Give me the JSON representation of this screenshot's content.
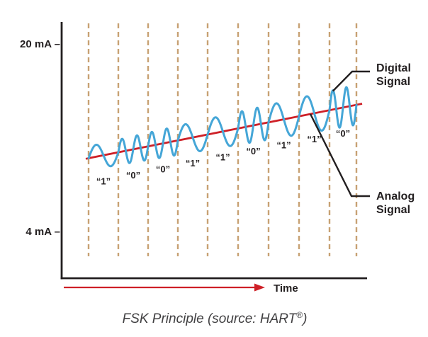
{
  "colors": {
    "ink": "#231f20",
    "analog_red": "#ce2027",
    "digital_blue": "#45a6d7",
    "grid_tan": "#c7a173",
    "caption_gray": "#414042"
  },
  "figure": {
    "caption": {
      "main": "FSK Principle (source: HART",
      "reg": "®",
      "close": ")"
    }
  },
  "annotations": {
    "digital_signal": {
      "lines": [
        "Digital",
        "Signal"
      ]
    },
    "analog_signal": {
      "lines": [
        "Analog",
        "Signal"
      ]
    }
  },
  "chart_data": {
    "type": "line",
    "title": "FSK Principle (source: HART®)",
    "xlabel": "Time",
    "ylabel": "",
    "ylim": [
      4,
      20
    ],
    "y_ticks": [
      {
        "label": "20 mA –",
        "value": 20
      },
      {
        "label": "4 mA –",
        "value": 4
      }
    ],
    "grid": "vertical tan dashed lines, one per bit period",
    "bit_periods": 9,
    "bits": [
      {
        "bit": "1",
        "label": "“1”"
      },
      {
        "bit": "0",
        "label": "“0”"
      },
      {
        "bit": "0",
        "label": "“0”"
      },
      {
        "bit": "1",
        "label": "“1”"
      },
      {
        "bit": "1",
        "label": "“1”"
      },
      {
        "bit": "0",
        "label": "“0”"
      },
      {
        "bit": "1",
        "label": "“1”"
      },
      {
        "bit": "1",
        "label": "“1”"
      },
      {
        "bit": "0",
        "label": "“0”"
      }
    ],
    "fsk_encoding": {
      "cycles_for_1": 1,
      "cycles_for_0": 2
    },
    "series": [
      {
        "name": "Analog Signal",
        "shape": "straight rising line",
        "color": "#ce2027",
        "start_mA": 10.2,
        "end_mA": 14.9
      },
      {
        "name": "Digital Signal",
        "shape": "FSK sine wave superimposed on the analog signal",
        "color": "#45a6d7",
        "amplitude_start_mA": 1.0,
        "amplitude_end_mA": 1.7,
        "centered_on": "Analog Signal"
      }
    ]
  }
}
